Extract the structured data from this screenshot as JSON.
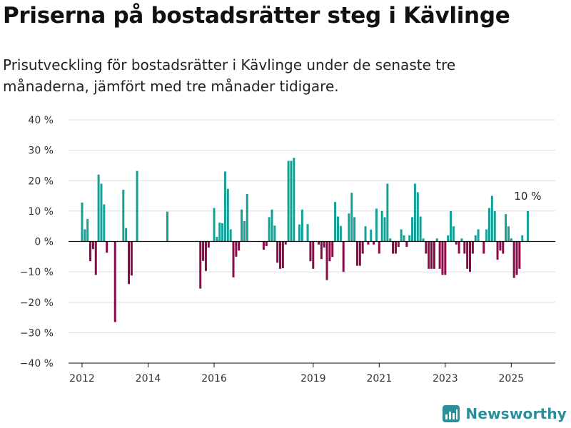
{
  "title": "Priserna på bostadsrätter steg i Kävlinge",
  "subtitle": "Prisutveckling för bostadsrätter i Kävlinge under de senaste tre månaderna, jämfört med tre månader tidigare.",
  "brand": {
    "name": "Newsworthy",
    "icon": "newsworthy-logo-icon"
  },
  "colors": {
    "positive": "#13a097",
    "negative": "#8b0a4a",
    "grid": "#dddddd",
    "axis": "#111111"
  },
  "chart_data": {
    "type": "bar",
    "title": "Priserna på bostadsrätter steg i Kävlinge",
    "subtitle": "Prisutveckling för bostadsrätter i Kävlinge under de senaste tre månaderna, jämfört med tre månader tidigare.",
    "xlabel": "",
    "ylabel": "",
    "ylim": [
      -40,
      40
    ],
    "y_ticks": [
      40,
      30,
      20,
      10,
      0,
      -10,
      -20,
      -30,
      -40
    ],
    "y_tick_labels": [
      "40 %",
      "30 %",
      "20 %",
      "10 %",
      "0 %",
      "−10 %",
      "−20 %",
      "−30 %",
      "−40 %"
    ],
    "x_tick_labels": [
      "2012",
      "2014",
      "2016",
      "2019",
      "2021",
      "2023",
      "2025"
    ],
    "x_tick_dates": [
      "2012-01",
      "2014-01",
      "2016-01",
      "2019-01",
      "2021-01",
      "2023-01",
      "2025-01"
    ],
    "xlim": [
      "2011-06",
      "2026-05"
    ],
    "grid": true,
    "legend": "none",
    "unit": "%",
    "series": [
      {
        "points": [
          [
            "2012-01",
            12.8
          ],
          [
            "2012-02",
            4.0
          ],
          [
            "2012-03",
            7.4
          ],
          [
            "2012-04",
            -6.5
          ],
          [
            "2012-05",
            -2.5
          ],
          [
            "2012-06",
            -11.0
          ],
          [
            "2012-07",
            22.0
          ],
          [
            "2012-08",
            19.0
          ],
          [
            "2012-09",
            12.2
          ],
          [
            "2012-10",
            -3.7
          ],
          [
            "2013-01",
            -26.5
          ],
          [
            "2013-04",
            17.0
          ],
          [
            "2013-05",
            4.4
          ],
          [
            "2013-06",
            -14.0
          ],
          [
            "2013-07",
            -11.2
          ],
          [
            "2013-09",
            23.2
          ],
          [
            "2014-08",
            9.8
          ],
          [
            "2015-08",
            -15.5
          ],
          [
            "2015-09",
            -6.4
          ],
          [
            "2015-10",
            -9.7
          ],
          [
            "2015-11",
            -2.0
          ],
          [
            "2016-01",
            11.0
          ],
          [
            "2016-02",
            1.5
          ],
          [
            "2016-03",
            6.2
          ],
          [
            "2016-04",
            6.0
          ],
          [
            "2016-05",
            23.0
          ],
          [
            "2016-06",
            17.3
          ],
          [
            "2016-07",
            4.0
          ],
          [
            "2016-08",
            -11.8
          ],
          [
            "2016-09",
            -5.0
          ],
          [
            "2016-10",
            -3.0
          ],
          [
            "2016-11",
            10.5
          ],
          [
            "2016-12",
            6.7
          ],
          [
            "2017-01",
            15.6
          ],
          [
            "2017-07",
            -2.7
          ],
          [
            "2017-08",
            -1.5
          ],
          [
            "2017-09",
            8.0
          ],
          [
            "2017-10",
            10.5
          ],
          [
            "2017-11",
            5.2
          ],
          [
            "2017-12",
            -7.0
          ],
          [
            "2018-01",
            -9.0
          ],
          [
            "2018-02",
            -8.8
          ],
          [
            "2018-03",
            -1.0
          ],
          [
            "2018-04",
            26.5
          ],
          [
            "2018-05",
            26.5
          ],
          [
            "2018-06",
            27.5
          ],
          [
            "2018-08",
            5.6
          ],
          [
            "2018-09",
            10.5
          ],
          [
            "2018-11",
            5.7
          ],
          [
            "2018-12",
            -6.5
          ],
          [
            "2019-01",
            -9.0
          ],
          [
            "2019-03",
            -1.0
          ],
          [
            "2019-04",
            -5.8
          ],
          [
            "2019-05",
            -2.0
          ],
          [
            "2019-06",
            -12.7
          ],
          [
            "2019-07",
            -6.5
          ],
          [
            "2019-08",
            -5.1
          ],
          [
            "2019-09",
            13.0
          ],
          [
            "2019-10",
            8.2
          ],
          [
            "2019-11",
            5.1
          ],
          [
            "2019-12",
            -10.0
          ],
          [
            "2020-02",
            9.2
          ],
          [
            "2020-03",
            16.0
          ],
          [
            "2020-04",
            8.0
          ],
          [
            "2020-05",
            -8.0
          ],
          [
            "2020-06",
            -8.0
          ],
          [
            "2020-07",
            -4.0
          ],
          [
            "2020-08",
            5.0
          ],
          [
            "2020-09",
            -1.0
          ],
          [
            "2020-10",
            3.9
          ],
          [
            "2020-11",
            -1.0
          ],
          [
            "2020-12",
            10.8
          ],
          [
            "2021-01",
            -4.0
          ],
          [
            "2021-02",
            10.0
          ],
          [
            "2021-03",
            8.0
          ],
          [
            "2021-04",
            19.0
          ],
          [
            "2021-05",
            1.0
          ],
          [
            "2021-06",
            -4.0
          ],
          [
            "2021-07",
            -4.0
          ],
          [
            "2021-08",
            -1.8
          ],
          [
            "2021-09",
            4.0
          ],
          [
            "2021-10",
            2.0
          ],
          [
            "2021-11",
            -1.8
          ],
          [
            "2021-12",
            2.0
          ],
          [
            "2022-01",
            8.0
          ],
          [
            "2022-02",
            19.0
          ],
          [
            "2022-03",
            16.2
          ],
          [
            "2022-04",
            8.2
          ],
          [
            "2022-05",
            1.0
          ],
          [
            "2022-06",
            -4.0
          ],
          [
            "2022-07",
            -9.0
          ],
          [
            "2022-08",
            -9.0
          ],
          [
            "2022-09",
            -9.0
          ],
          [
            "2022-10",
            1.0
          ],
          [
            "2022-11",
            -9.0
          ],
          [
            "2022-12",
            -11.0
          ],
          [
            "2023-01",
            -11.0
          ],
          [
            "2023-02",
            2.0
          ],
          [
            "2023-03",
            10.0
          ],
          [
            "2023-04",
            5.0
          ],
          [
            "2023-05",
            -1.0
          ],
          [
            "2023-06",
            -4.0
          ],
          [
            "2023-07",
            1.0
          ],
          [
            "2023-08",
            -4.0
          ],
          [
            "2023-09",
            -9.0
          ],
          [
            "2023-10",
            -10.0
          ],
          [
            "2023-11",
            -4.0
          ],
          [
            "2023-12",
            2.0
          ],
          [
            "2024-01",
            4.0
          ],
          [
            "2024-03",
            -4.0
          ],
          [
            "2024-04",
            4.0
          ],
          [
            "2024-05",
            11.0
          ],
          [
            "2024-06",
            15.0
          ],
          [
            "2024-07",
            10.0
          ],
          [
            "2024-08",
            -6.0
          ],
          [
            "2024-09",
            -3.0
          ],
          [
            "2024-10",
            -4.0
          ],
          [
            "2024-11",
            9.0
          ],
          [
            "2024-12",
            5.0
          ],
          [
            "2025-01",
            1.0
          ],
          [
            "2025-02",
            -12.0
          ],
          [
            "2025-03",
            -11.0
          ],
          [
            "2025-04",
            -9.0
          ],
          [
            "2025-05",
            2.0
          ],
          [
            "2025-07",
            10.0
          ]
        ]
      }
    ],
    "annotations": [
      {
        "date": "2025-07",
        "value": 10.0,
        "text": "10 %"
      }
    ]
  }
}
